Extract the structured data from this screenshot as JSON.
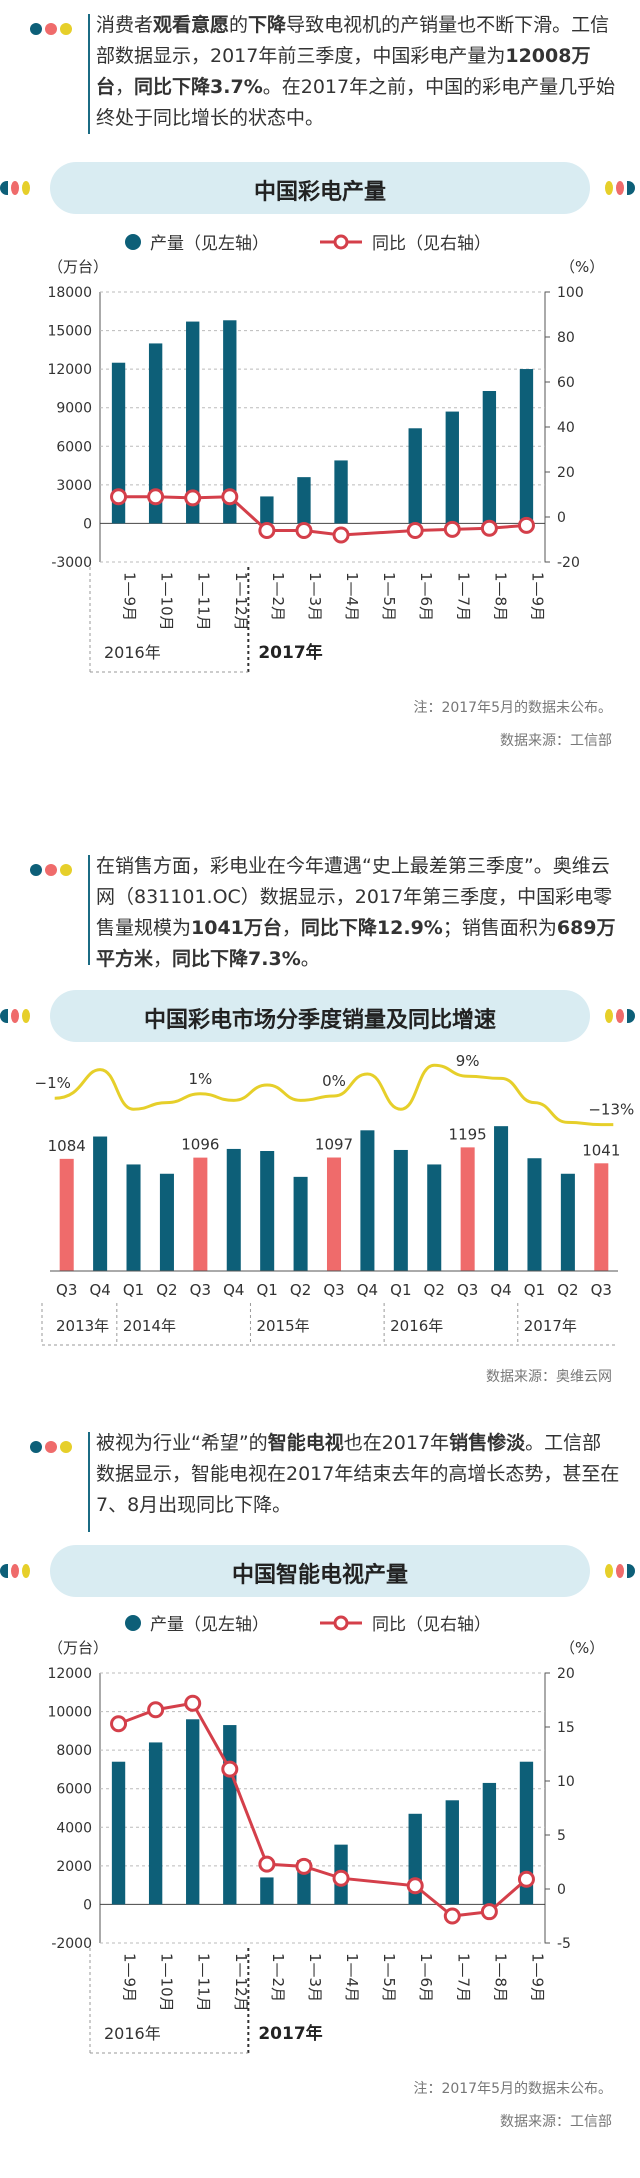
{
  "colors": {
    "teal": "#0d5f78",
    "red": "#d43f4a",
    "salmon": "#ef6b6b",
    "yellow": "#e6cf2a",
    "banner": "#d9ecf2"
  },
  "intro1": {
    "segments": [
      {
        "t": "消费者",
        "b": false
      },
      {
        "t": "观看意愿",
        "b": true
      },
      {
        "t": "的",
        "b": false
      },
      {
        "t": "下降",
        "b": true
      },
      {
        "t": "导致电视机的产销量也不断下滑。工信部数据显示，2017年前三季度，中国彩电产量为",
        "b": false
      },
      {
        "t": "12008万台",
        "b": true
      },
      {
        "t": "，",
        "b": false
      },
      {
        "t": "同比下降3.7%",
        "b": true
      },
      {
        "t": "。在2017年之前，中国的彩电产量几乎始终处于同比增长的状态中。",
        "b": false
      }
    ]
  },
  "chart1": {
    "banner": "中国彩电产量",
    "legend_bar": "产量（见左轴）",
    "legend_line": "同比（见右轴）",
    "left_unit": "（万台）",
    "right_unit": "（%）",
    "note": "注：2017年5月的数据未公布。",
    "source": "数据来源：工信部",
    "year1": "2016年",
    "year2": "2017年"
  },
  "intro2": {
    "segments": [
      {
        "t": "在销售方面，彩电业在今年遭遇“史上最差第三季度”。奥维云网（831101.OC）数据显示，2017年第三季度，中国彩电零售量规模为",
        "b": false
      },
      {
        "t": "1041万台",
        "b": true
      },
      {
        "t": "，",
        "b": false
      },
      {
        "t": "同比下降12.9%",
        "b": true
      },
      {
        "t": "；销售面积为",
        "b": false
      },
      {
        "t": "689万平方米",
        "b": true
      },
      {
        "t": "，",
        "b": false
      },
      {
        "t": "同比下降7.3%",
        "b": true
      },
      {
        "t": "。",
        "b": false
      }
    ]
  },
  "chart2": {
    "banner": "中国彩电市场分季度销量及同比增速",
    "source": "数据来源：奥维云网",
    "years": [
      "2013年",
      "2014年",
      "2015年",
      "2016年",
      "2017年"
    ]
  },
  "intro3": {
    "segments": [
      {
        "t": "被视为行业“希望”的",
        "b": false
      },
      {
        "t": "智能电视",
        "b": true
      },
      {
        "t": "也在2017年",
        "b": false
      },
      {
        "t": "销售惨淡",
        "b": true
      },
      {
        "t": "。工信部数据显示，智能电视在2017年结束去年的高增长态势，甚至在7、8月出现同比下降。",
        "b": false
      }
    ]
  },
  "chart3": {
    "banner": "中国智能电视产量",
    "legend_bar": "产量（见左轴）",
    "legend_line": "同比（见右轴）",
    "left_unit": "（万台）",
    "right_unit": "（%）",
    "note": "注：2017年5月的数据未公布。",
    "source": "数据来源：工信部",
    "year1": "2016年",
    "year2": "2017年"
  },
  "chart_data": [
    {
      "type": "bar",
      "title": "中国彩电产量",
      "categories": [
        "1—9月",
        "1—10月",
        "1—11月",
        "1—12月",
        "1—2月",
        "1—3月",
        "1—4月",
        "1—5月",
        "1—6月",
        "1—7月",
        "1—8月",
        "1—9月"
      ],
      "ylim": [
        -3000,
        18000
      ],
      "yticks": [
        -3000,
        0,
        3000,
        6000,
        9000,
        12000,
        15000,
        18000
      ],
      "y2lim": [
        -20,
        100
      ],
      "y2ticks": [
        -20,
        0,
        20,
        40,
        60,
        80,
        100
      ],
      "series": [
        {
          "name": "产量（见左轴）",
          "axis": "left",
          "type": "bar",
          "values": [
            12500,
            14000,
            15700,
            15800,
            2100,
            3600,
            4900,
            null,
            7400,
            8700,
            10300,
            12008
          ]
        },
        {
          "name": "同比（见右轴）",
          "axis": "right",
          "type": "line",
          "values": [
            9,
            9,
            8.5,
            9,
            -6,
            -6,
            -8,
            null,
            -6,
            -5.5,
            -5,
            -3.7
          ]
        }
      ]
    },
    {
      "type": "bar",
      "title": "中国彩电市场分季度销量及同比增速",
      "categories": [
        "Q3",
        "Q4",
        "Q1",
        "Q2",
        "Q3",
        "Q4",
        "Q1",
        "Q2",
        "Q3",
        "Q4",
        "Q1",
        "Q2",
        "Q3",
        "Q4",
        "Q1",
        "Q2",
        "Q3"
      ],
      "series": [
        {
          "name": "销量",
          "type": "bar",
          "values": [
            1084,
            1300,
            1030,
            940,
            1096,
            1180,
            1160,
            910,
            1097,
            1360,
            1170,
            1030,
            1195,
            1400,
            1090,
            940,
            1041
          ],
          "highlight": [
            true,
            false,
            false,
            false,
            true,
            false,
            false,
            false,
            true,
            false,
            false,
            false,
            true,
            false,
            false,
            false,
            true
          ]
        },
        {
          "name": "同比增速",
          "type": "line",
          "values": [
            -1,
            12,
            -6,
            -3,
            1,
            -2,
            5,
            -2,
            0,
            10,
            -6,
            14,
            9,
            8,
            -3,
            -12,
            -13
          ]
        }
      ],
      "data_labels": [
        {
          "index": 0,
          "bar": "1084",
          "pct": "−1%"
        },
        {
          "index": 4,
          "bar": "1096",
          "pct": "1%"
        },
        {
          "index": 8,
          "bar": "1097",
          "pct": "0%"
        },
        {
          "index": 12,
          "bar": "1195",
          "pct": "9%"
        },
        {
          "index": 16,
          "bar": "1041",
          "pct": "−13%"
        }
      ]
    },
    {
      "type": "bar",
      "title": "中国智能电视产量",
      "categories": [
        "1—9月",
        "1—10月",
        "1—11月",
        "1—12月",
        "1—2月",
        "1—3月",
        "1—4月",
        "1—5月",
        "1—6月",
        "1—7月",
        "1—8月",
        "1—9月"
      ],
      "ylim": [
        -2000,
        12000
      ],
      "yticks": [
        -2000,
        0,
        2000,
        4000,
        6000,
        8000,
        10000,
        12000
      ],
      "y2lim": [
        -5,
        20
      ],
      "y2ticks": [
        -5,
        0,
        5,
        10,
        15,
        20
      ],
      "series": [
        {
          "name": "产量（见左轴）",
          "axis": "left",
          "type": "bar",
          "values": [
            7400,
            8400,
            9600,
            9300,
            1400,
            2300,
            3100,
            null,
            4700,
            5400,
            6300,
            7400
          ]
        },
        {
          "name": "同比（见右轴）",
          "axis": "right",
          "type": "line",
          "values": [
            15.3,
            16.6,
            17.2,
            11.1,
            2.3,
            2.1,
            1.0,
            null,
            0.3,
            -2.5,
            -2.1,
            0.9
          ]
        }
      ]
    }
  ]
}
